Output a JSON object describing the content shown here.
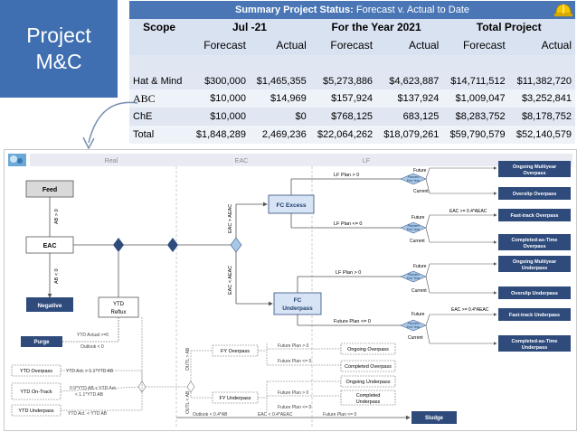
{
  "title": {
    "line1": "Project",
    "line2": "M&C"
  },
  "summary": {
    "title_bold": "Summary Project Status:",
    "title_rest": " Forecast v. Actual to Date",
    "scope_label": "Scope",
    "periods": [
      "Jul -21",
      "For the Year 2021",
      "Total Project"
    ],
    "sub_headers": [
      "Forecast",
      "Actual",
      "Forecast",
      "Actual",
      "Forecast",
      "Actual"
    ],
    "rows": [
      {
        "label": "Hat & Mind",
        "values": [
          "$300,000",
          "$1,465,355",
          "$5,273,886",
          "$4,623,887",
          "$14,711,512",
          "$11,382,720"
        ]
      },
      {
        "label": "ABC",
        "values": [
          "$10,000",
          "$14,969",
          "$157,924",
          "$137,924",
          "$1,009,047",
          "$3,252,841"
        ]
      },
      {
        "label": "ChE",
        "values": [
          "$10,000",
          "$0",
          "$768,125",
          "683,125",
          "$8,283,752",
          "$8,178,752"
        ]
      },
      {
        "label": "Total",
        "values": [
          "$1,848,289",
          "2,469,236",
          "$22,064,262",
          "$18,079,261",
          "$59,790,579",
          "$52,140,579"
        ]
      }
    ]
  },
  "flow": {
    "lanes": [
      "Real",
      "EAC",
      "LF"
    ],
    "nodes": {
      "feed": "Feed",
      "eac": "EAC",
      "negative": "Negative",
      "ytd_reflux_1": "YTD",
      "ytd_reflux_2": "Reflux",
      "purge": "Purge",
      "fc_excess": "FC Excess",
      "fc_1": "FC",
      "fc_2": "Underpass",
      "ongoing_multi_over_1": "Ongoing Multiyear",
      "ongoing_multi_over_2": "Overpass",
      "overslip_over": "Overslip Overpass",
      "fasttrack_over": "Fast-track Overpass",
      "completed_time_over_1": "Completed-as-Time",
      "completed_time_over_2": "Overpass",
      "ongoing_multi_under_1": "Ongoing Multiyear",
      "ongoing_multi_under_2": "Underpass",
      "overslip_under": "Overslip Underpass",
      "fasttrack_under": "Fast-track Underpass",
      "completed_time_under_1": "Completed-as-Time",
      "completed_time_under_2": "Underpass",
      "sludge": "Sludge",
      "fy_overpass": "FY Overpass",
      "fy_underpass": "FY Underpass",
      "ongoing_overpass": "Ongoing Overpass",
      "completed_overpass": "Completed Overpass",
      "ongoing_underpass": "Ongoing Underpass",
      "completed_underpass_1": "Completed",
      "completed_underpass_2": "Underpass",
      "ytd_overpass": "YTD Overpass",
      "ytd_ontrack_1": "YTD On-Track",
      "ytd_underpass": "YTD Underpass",
      "planned_end_year_1": "Planned",
      "planned_end_year_2": "End Year"
    },
    "labels": {
      "ab_gt_0": "AB > 0",
      "ab_lt_0": "AB < 0",
      "eac_gt_aeac": "EAC > AEAC",
      "eac_lt_aeac": "EAC < AEAC",
      "lf_plan_gt_0": "LF Plan > 0",
      "lf_plan_le_0": "LF Plan <= 0",
      "lf_plan_gt_0_b": "LF Plan > 0",
      "future_plan_le_0": "Future Plan <= 0",
      "future": "Future",
      "current": "Current",
      "eac_ge_04": "EAC >= 0.4*AEAC",
      "ytd_actual": "YTD Actual >=0",
      "outlook_lt_0": "Outlook < 0",
      "ytd_act_gt": "YTD Act. > 1.1*YTD AB",
      "ytd_act_between_1": "0.9*YTD AB < YTD Act.",
      "ytd_act_between_2": "< 1.1*YTD AB",
      "ytd_act_lt": "YTD Act. < YTD AB",
      "future_plan_gt_0": "Future Plan > 0",
      "future_plan_le_0_b": "Future Plan <= 0",
      "outl_gt_ab": "OUTL > AB",
      "outl_lt_ab": "OUTL < AB",
      "outlook_lt_04": "Outlook < 0.4*AB",
      "eac_lt_04": "EAC < 0.4*AEAC",
      "future_plan_le_0_c": "Future Plan <= 0"
    }
  }
}
